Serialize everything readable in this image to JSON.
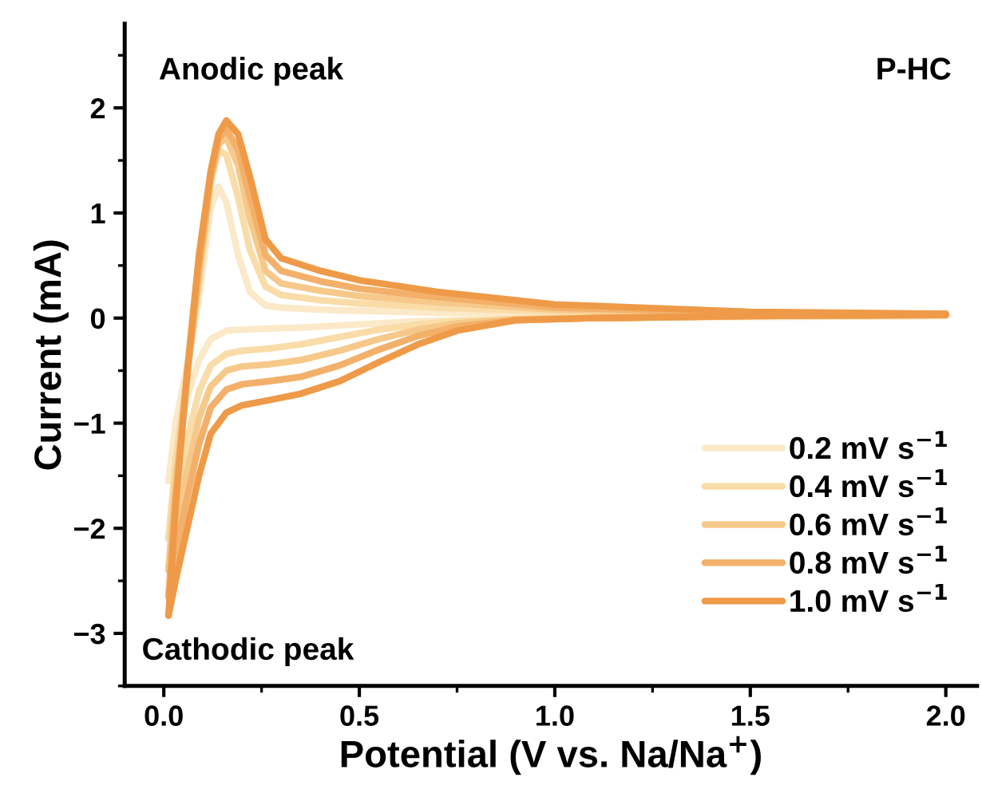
{
  "chart_data": {
    "type": "line",
    "xlabel": "Potential (V vs. Na/Na$^{+}$)",
    "ylabel": "Current (mA)",
    "annotations": [
      "Anodic peak",
      "P-HC",
      "Cathodic peak"
    ],
    "series": [
      {
        "color": "#fbe9c9",
        "x": [
          2.0,
          1.5,
          1.1,
          0.9,
          0.75,
          0.65,
          0.55,
          0.45,
          0.35,
          0.27,
          0.2,
          0.16,
          0.12,
          0.09,
          0.06,
          0.03,
          0.012
        ],
        "values": [
          0.02,
          0.01,
          0.0,
          -0.01,
          -0.02,
          -0.03,
          -0.05,
          -0.07,
          -0.09,
          -0.1,
          -0.11,
          -0.12,
          -0.2,
          -0.4,
          -0.75,
          -1.2,
          -1.55
        ]
      },
      {
        "name": "0.2 mV s$^{−1}$",
        "color": "#fbe9c9",
        "x": [
          0.012,
          0.03,
          0.06,
          0.09,
          0.12,
          0.14,
          0.16,
          0.19,
          0.22,
          0.26,
          0.3,
          0.4,
          0.5,
          0.7,
          1.0,
          1.5,
          2.0
        ],
        "values": [
          -1.55,
          -1.0,
          -0.45,
          0.2,
          1.05,
          1.25,
          1.1,
          0.6,
          0.25,
          0.12,
          0.1,
          0.08,
          0.07,
          0.05,
          0.04,
          0.02,
          0.02
        ]
      },
      {
        "color": "#f9dca8",
        "x": [
          2.0,
          1.5,
          1.1,
          0.9,
          0.75,
          0.65,
          0.55,
          0.45,
          0.35,
          0.27,
          0.2,
          0.16,
          0.12,
          0.09,
          0.06,
          0.03,
          0.012
        ],
        "values": [
          0.03,
          0.02,
          0.0,
          -0.01,
          -0.03,
          -0.06,
          -0.11,
          -0.18,
          -0.25,
          -0.29,
          -0.31,
          -0.34,
          -0.45,
          -0.7,
          -1.15,
          -1.7,
          -2.1
        ]
      },
      {
        "name": "0.4 mV s$^{−1}$",
        "color": "#f9dca8",
        "x": [
          0.012,
          0.03,
          0.06,
          0.09,
          0.12,
          0.14,
          0.16,
          0.19,
          0.22,
          0.26,
          0.3,
          0.4,
          0.5,
          0.7,
          1.0,
          1.5,
          2.0
        ],
        "values": [
          -2.1,
          -1.35,
          -0.5,
          0.35,
          1.3,
          1.6,
          1.55,
          1.15,
          0.65,
          0.3,
          0.22,
          0.17,
          0.14,
          0.1,
          0.06,
          0.03,
          0.03
        ]
      },
      {
        "color": "#f6c98a",
        "x": [
          2.0,
          1.5,
          1.1,
          0.9,
          0.75,
          0.65,
          0.55,
          0.45,
          0.35,
          0.27,
          0.2,
          0.16,
          0.12,
          0.09,
          0.06,
          0.03,
          0.012
        ],
        "values": [
          0.03,
          0.02,
          0.0,
          -0.01,
          -0.05,
          -0.11,
          -0.2,
          -0.31,
          -0.4,
          -0.44,
          -0.46,
          -0.5,
          -0.65,
          -0.95,
          -1.45,
          -2.0,
          -2.4
        ]
      },
      {
        "name": "0.6 mV s$^{−1}$",
        "color": "#f6c98a",
        "x": [
          0.012,
          0.03,
          0.06,
          0.09,
          0.12,
          0.14,
          0.16,
          0.19,
          0.22,
          0.26,
          0.3,
          0.4,
          0.5,
          0.7,
          1.0,
          1.5,
          2.0
        ],
        "values": [
          -2.4,
          -1.55,
          -0.55,
          0.4,
          1.3,
          1.65,
          1.72,
          1.45,
          0.95,
          0.45,
          0.33,
          0.26,
          0.21,
          0.15,
          0.08,
          0.04,
          0.03
        ]
      },
      {
        "color": "#f3b06a",
        "x": [
          2.0,
          1.5,
          1.1,
          0.9,
          0.75,
          0.65,
          0.55,
          0.45,
          0.35,
          0.27,
          0.2,
          0.16,
          0.12,
          0.09,
          0.06,
          0.03,
          0.012
        ],
        "values": [
          0.03,
          0.02,
          0.0,
          -0.02,
          -0.08,
          -0.17,
          -0.3,
          -0.45,
          -0.56,
          -0.6,
          -0.63,
          -0.68,
          -0.85,
          -1.2,
          -1.7,
          -2.25,
          -2.65
        ]
      },
      {
        "name": "0.8 mV s$^{−1}$",
        "color": "#f3b06a",
        "x": [
          0.012,
          0.03,
          0.06,
          0.09,
          0.12,
          0.14,
          0.16,
          0.19,
          0.22,
          0.26,
          0.3,
          0.4,
          0.5,
          0.7,
          1.0,
          1.5,
          2.0
        ],
        "values": [
          -2.65,
          -1.7,
          -0.55,
          0.5,
          1.35,
          1.7,
          1.8,
          1.6,
          1.15,
          0.6,
          0.45,
          0.35,
          0.28,
          0.2,
          0.1,
          0.05,
          0.04
        ]
      },
      {
        "color": "#ef9a48",
        "x": [
          2.0,
          1.5,
          1.1,
          0.9,
          0.75,
          0.65,
          0.55,
          0.45,
          0.35,
          0.27,
          0.2,
          0.16,
          0.12,
          0.09,
          0.06,
          0.03,
          0.012
        ],
        "values": [
          0.03,
          0.02,
          0.0,
          -0.02,
          -0.12,
          -0.25,
          -0.42,
          -0.6,
          -0.72,
          -0.78,
          -0.83,
          -0.9,
          -1.1,
          -1.5,
          -2.0,
          -2.5,
          -2.83
        ]
      },
      {
        "name": "1.0 mV s$^{−1}$",
        "color": "#ef9a48",
        "x": [
          0.012,
          0.03,
          0.06,
          0.09,
          0.12,
          0.14,
          0.16,
          0.19,
          0.22,
          0.26,
          0.3,
          0.4,
          0.5,
          0.7,
          1.0,
          1.5,
          2.0
        ],
        "values": [
          -2.83,
          -1.8,
          -0.5,
          0.6,
          1.4,
          1.75,
          1.88,
          1.75,
          1.35,
          0.75,
          0.57,
          0.45,
          0.36,
          0.25,
          0.13,
          0.06,
          0.04
        ]
      }
    ],
    "xlim": [
      -0.1,
      2.08
    ],
    "ylim": [
      -3.5,
      2.8
    ],
    "xticks": [
      {
        "value": 0,
        "label": "0.0"
      },
      {
        "value": 0.5,
        "label": "0.5"
      },
      {
        "value": 1,
        "label": "1.0"
      },
      {
        "value": 1.5,
        "label": "1.5"
      },
      {
        "value": 2,
        "label": "2.0"
      }
    ],
    "yticks": [
      {
        "value": -3,
        "label": "−3"
      },
      {
        "value": -2,
        "label": "−2"
      },
      {
        "value": -1,
        "label": "−1"
      },
      0,
      1,
      2
    ],
    "legend": "bottom right",
    "grid": false,
    "marker": "none",
    "line_style": "solid"
  }
}
